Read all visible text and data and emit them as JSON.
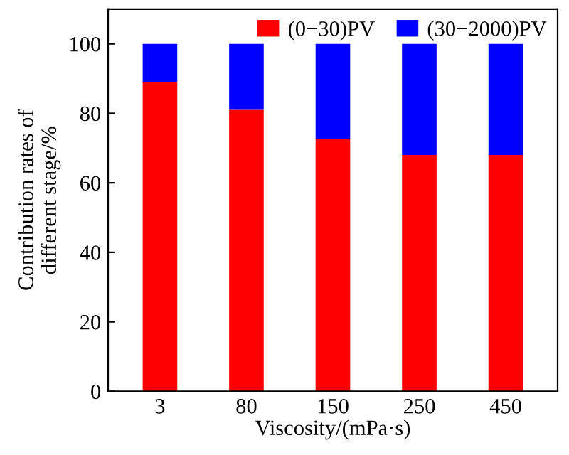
{
  "chart_data": {
    "type": "bar",
    "stacked": true,
    "xlabel": "Viscosity/(mPa·s)",
    "ylabel": "Contribution rates of\ndifferent stage/%",
    "categories": [
      "3",
      "80",
      "150",
      "250",
      "450"
    ],
    "series": [
      {
        "name": "(0−30)PV",
        "color": "#ff0000",
        "values": [
          89,
          81,
          72.5,
          68,
          68
        ]
      },
      {
        "name": "(30−2000)PV",
        "color": "#0000ff",
        "values": [
          11,
          19,
          27.5,
          32,
          32
        ]
      }
    ],
    "ylim": [
      0,
      110
    ],
    "yticks": [
      0,
      20,
      40,
      60,
      80,
      100
    ],
    "grid": false,
    "legend": "top right"
  }
}
